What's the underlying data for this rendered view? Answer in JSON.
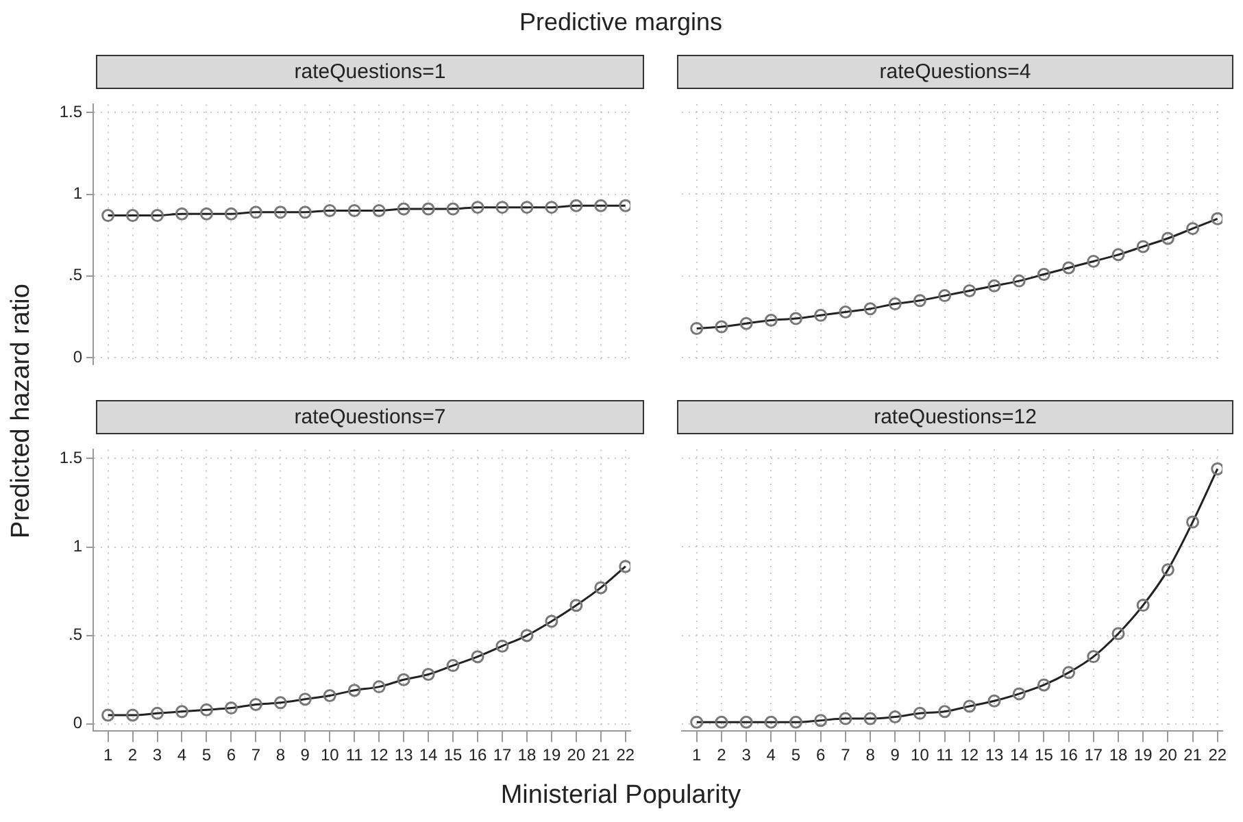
{
  "chart_data": [
    {
      "type": "line",
      "title": "rateQuestions=1",
      "annotations": [
        "Predictive margins"
      ],
      "ylabel": "Predicted hazard ratio",
      "x": [
        1,
        2,
        3,
        4,
        5,
        6,
        7,
        8,
        9,
        10,
        11,
        12,
        13,
        14,
        15,
        16,
        17,
        18,
        19,
        20,
        21,
        22
      ],
      "series": [
        {
          "color": "#222222",
          "values": [
            0.87,
            0.87,
            0.87,
            0.88,
            0.88,
            0.88,
            0.89,
            0.89,
            0.89,
            0.9,
            0.9,
            0.9,
            0.91,
            0.91,
            0.91,
            0.92,
            0.92,
            0.92,
            0.92,
            0.93,
            0.93,
            0.93
          ]
        }
      ],
      "xlim": [
        0.4,
        22.2
      ],
      "xticks": [
        1,
        2,
        3,
        4,
        5,
        6,
        7,
        8,
        9,
        10,
        11,
        12,
        13,
        14,
        15,
        16,
        17,
        18,
        19,
        20,
        21,
        22
      ],
      "ylim": [
        -0.04,
        1.55
      ],
      "yticks": [
        0,
        {
          "value": 0.5,
          "label": ".5"
        },
        1,
        1.5
      ],
      "grid": true,
      "marker": "circle",
      "tick_labels": "y"
    },
    {
      "type": "line",
      "title": "rateQuestions=4",
      "x": [
        1,
        2,
        3,
        4,
        5,
        6,
        7,
        8,
        9,
        10,
        11,
        12,
        13,
        14,
        15,
        16,
        17,
        18,
        19,
        20,
        21,
        22
      ],
      "series": [
        {
          "color": "#222222",
          "values": [
            0.18,
            0.19,
            0.21,
            0.23,
            0.24,
            0.26,
            0.28,
            0.3,
            0.33,
            0.35,
            0.38,
            0.41,
            0.44,
            0.47,
            0.51,
            0.55,
            0.59,
            0.63,
            0.68,
            0.73,
            0.79,
            0.85
          ]
        }
      ],
      "xlim": [
        0.4,
        22.2
      ],
      "xticks": [
        1,
        2,
        3,
        4,
        5,
        6,
        7,
        8,
        9,
        10,
        11,
        12,
        13,
        14,
        15,
        16,
        17,
        18,
        19,
        20,
        21,
        22
      ],
      "ylim": [
        -0.04,
        1.55
      ],
      "yticks": [
        0,
        0.5,
        1,
        1.5
      ],
      "grid": true,
      "marker": "circle",
      "tick_labels": false
    },
    {
      "type": "line",
      "title": "rateQuestions=7",
      "xlabel": "Ministerial Popularity",
      "x": [
        1,
        2,
        3,
        4,
        5,
        6,
        7,
        8,
        9,
        10,
        11,
        12,
        13,
        14,
        15,
        16,
        17,
        18,
        19,
        20,
        21,
        22
      ],
      "series": [
        {
          "color": "#222222",
          "values": [
            0.05,
            0.05,
            0.06,
            0.07,
            0.08,
            0.09,
            0.11,
            0.12,
            0.14,
            0.16,
            0.19,
            0.21,
            0.25,
            0.28,
            0.33,
            0.38,
            0.44,
            0.5,
            0.58,
            0.67,
            0.77,
            0.89
          ]
        }
      ],
      "xlim": [
        0.4,
        22.2
      ],
      "xticks": [
        1,
        2,
        3,
        4,
        5,
        6,
        7,
        8,
        9,
        10,
        11,
        12,
        13,
        14,
        15,
        16,
        17,
        18,
        19,
        20,
        21,
        22
      ],
      "ylim": [
        -0.04,
        1.55
      ],
      "yticks": [
        0,
        {
          "value": 0.5,
          "label": ".5"
        },
        1,
        1.5
      ],
      "grid": true,
      "marker": "circle"
    },
    {
      "type": "line",
      "title": "rateQuestions=12",
      "x": [
        1,
        2,
        3,
        4,
        5,
        6,
        7,
        8,
        9,
        10,
        11,
        12,
        13,
        14,
        15,
        16,
        17,
        18,
        19,
        20,
        21,
        22
      ],
      "series": [
        {
          "color": "#222222",
          "values": [
            0.01,
            0.01,
            0.01,
            0.01,
            0.01,
            0.02,
            0.03,
            0.03,
            0.04,
            0.06,
            0.07,
            0.1,
            0.13,
            0.17,
            0.22,
            0.29,
            0.38,
            0.51,
            0.67,
            0.87,
            1.14,
            1.44
          ]
        }
      ],
      "xlim": [
        0.4,
        22.2
      ],
      "xticks": [
        1,
        2,
        3,
        4,
        5,
        6,
        7,
        8,
        9,
        10,
        11,
        12,
        13,
        14,
        15,
        16,
        17,
        18,
        19,
        20,
        21,
        22
      ],
      "ylim": [
        -0.04,
        1.55
      ],
      "yticks": [
        0,
        0.5,
        1,
        1.5
      ],
      "grid": true,
      "marker": "circle",
      "tick_labels": "x"
    }
  ]
}
